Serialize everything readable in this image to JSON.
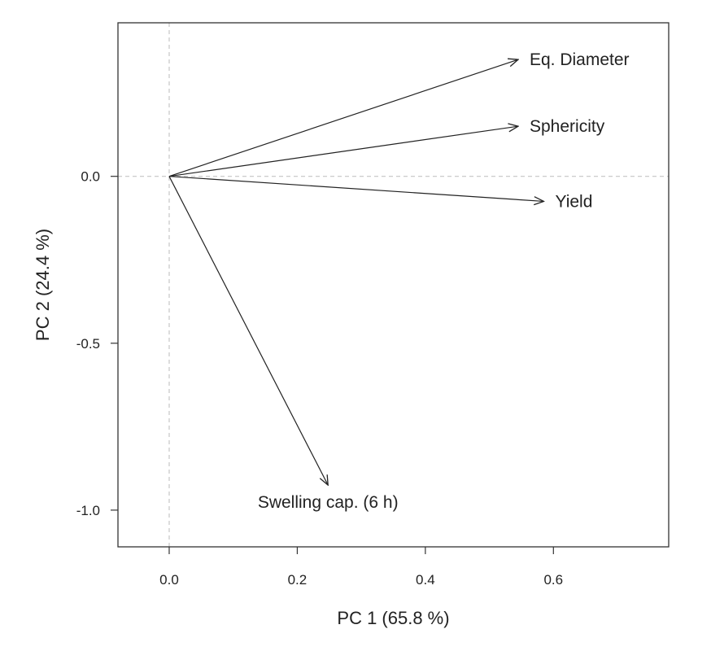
{
  "chart_data": {
    "type": "biplot",
    "xlabel": "PC 1 (65.8 %)",
    "ylabel": "PC 2 (24.4 %)",
    "xlim": [
      -0.08,
      0.78
    ],
    "ylim": [
      -1.11,
      0.46
    ],
    "xticks": [
      0.0,
      0.2,
      0.4,
      0.6
    ],
    "xtick_labels": [
      "0.0",
      "0.2",
      "0.4",
      "0.6"
    ],
    "yticks": [
      0.0,
      -0.5,
      -1.0
    ],
    "ytick_labels": [
      "0.0",
      "-0.5",
      "-1.0"
    ],
    "reference_lines": {
      "x": 0,
      "y": 0,
      "style": "dashed"
    },
    "grid": false,
    "vectors": [
      {
        "name": "Eq. Diameter",
        "x": 0.545,
        "y": 0.35
      },
      {
        "name": "Sphericity",
        "x": 0.545,
        "y": 0.15
      },
      {
        "name": "Yield",
        "x": 0.585,
        "y": -0.075
      },
      {
        "name": "Swelling cap. (6 h)",
        "x": 0.248,
        "y": -0.925
      }
    ]
  }
}
